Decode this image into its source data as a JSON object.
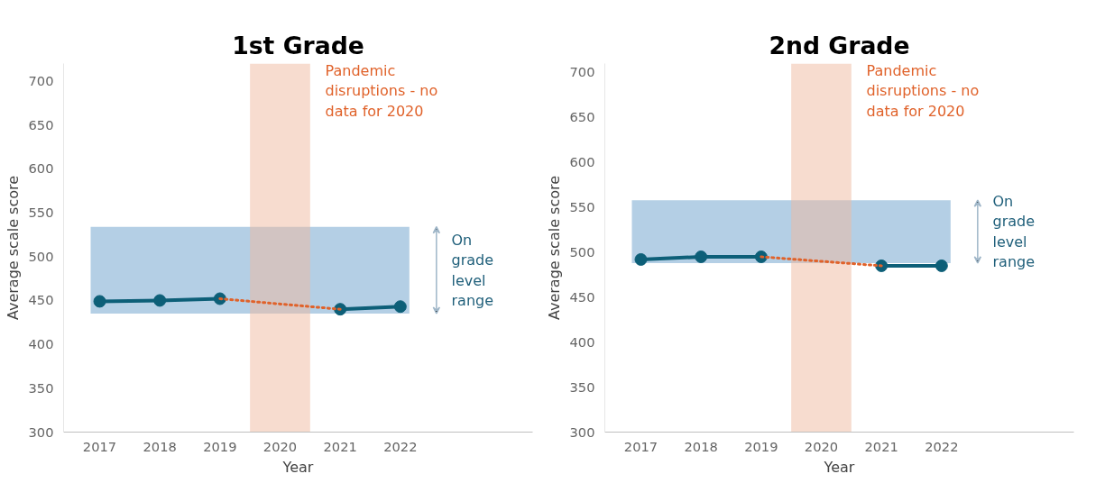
{
  "chart_data": [
    {
      "type": "line",
      "title": "1st Grade",
      "xlabel": "Year",
      "ylabel": "Average scale score",
      "categories": [
        "2017",
        "2018",
        "2019",
        "2020",
        "2021",
        "2022"
      ],
      "series": [
        {
          "color": "#0d5f78",
          "values": [
            449,
            450,
            452,
            null,
            440,
            443
          ],
          "marker": "circle",
          "line_style": "solid"
        },
        {
          "color": "#e0622a",
          "values": [
            null,
            null,
            452,
            null,
            440,
            null
          ],
          "marker": "none",
          "line_style": "dotted"
        }
      ],
      "ylim": [
        300,
        720
      ],
      "yticks": [
        300,
        350,
        400,
        450,
        500,
        550,
        600,
        650,
        700
      ],
      "bands": [
        {
          "axis": "y",
          "from": 435,
          "to": 534,
          "label": "On grade level range",
          "color": "#6a9fcc"
        },
        {
          "axis": "x",
          "from": "2020",
          "to": "2020",
          "label": "Pandemic disruptions - no data for 2020",
          "color": "#f0b9a0"
        }
      ],
      "grid": false
    },
    {
      "type": "line",
      "title": "2nd Grade",
      "xlabel": "Year",
      "ylabel": "Average scale score",
      "categories": [
        "2017",
        "2018",
        "2019",
        "2020",
        "2021",
        "2022"
      ],
      "series": [
        {
          "color": "#0d5f78",
          "values": [
            492,
            495,
            495,
            null,
            485,
            485
          ],
          "marker": "circle",
          "line_style": "solid"
        },
        {
          "color": "#e0622a",
          "values": [
            null,
            null,
            495,
            null,
            485,
            null
          ],
          "marker": "none",
          "line_style": "dotted"
        }
      ],
      "ylim": [
        300,
        710
      ],
      "yticks": [
        300,
        350,
        400,
        450,
        500,
        550,
        600,
        650,
        700
      ],
      "bands": [
        {
          "axis": "y",
          "from": 488,
          "to": 558,
          "label": "On grade level range",
          "color": "#6a9fcc"
        },
        {
          "axis": "x",
          "from": "2020",
          "to": "2020",
          "label": "Pandemic disruptions - no data for 2020",
          "color": "#f0b9a0"
        }
      ],
      "grid": false
    }
  ]
}
